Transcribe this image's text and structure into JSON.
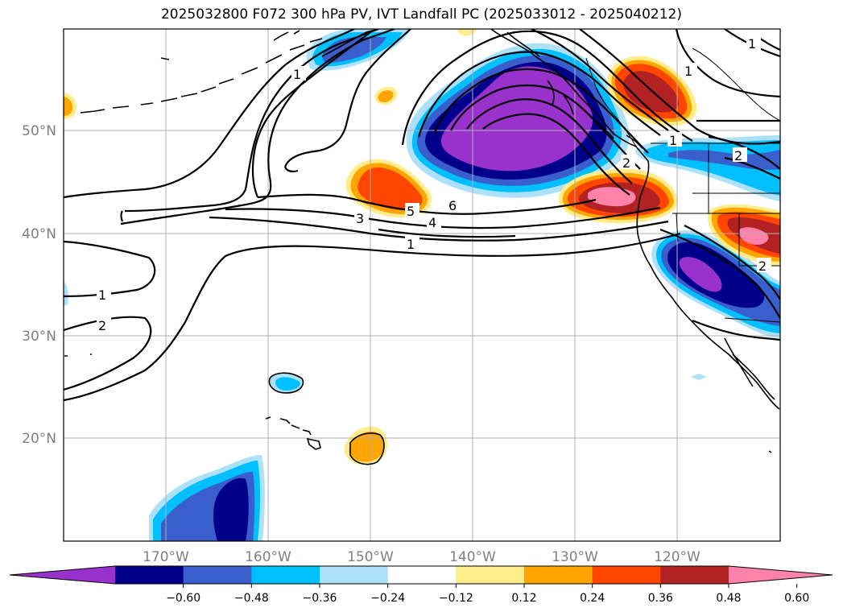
{
  "title": "2025032800 F072 300 hPa PV, IVT Landfall PC (2025033012 - 2025040212)",
  "lat_labels": [
    "50°N",
    "40°N",
    "30°N",
    "20°N"
  ],
  "lon_labels": [
    "170°W",
    "160°W",
    "150°W",
    "140°W",
    "130°W",
    "120°W"
  ],
  "colorbar": {
    "ticks": [
      "−0.60",
      "−0.48",
      "−0.36",
      "−0.24",
      "−0.12",
      "0.12",
      "0.24",
      "0.36",
      "0.48",
      "0.60"
    ],
    "colors": [
      "#9932CC",
      "#00008B",
      "#3A5FCD",
      "#00BFFF",
      "#ADE1FA",
      "#FFFFFF",
      "#FFEC8B",
      "#FFA500",
      "#FF4500",
      "#B22222",
      "#FF82AB"
    ]
  },
  "contour_labels": [
    "1",
    "2",
    "3",
    "4",
    "5",
    "6",
    "1",
    "1",
    "2",
    "1",
    "2",
    "1",
    "1",
    "2"
  ],
  "colors": {
    "neg_060": "#9932CC",
    "neg_048": "#00008B",
    "neg_036": "#3A5FCD",
    "neg_024": "#00BFFF",
    "neg_012": "#ADE1FA",
    "pos_012": "#FFEC8B",
    "pos_024": "#FFA500",
    "pos_036": "#FF4500",
    "pos_048": "#B22222",
    "pos_060": "#FF82AB"
  }
}
